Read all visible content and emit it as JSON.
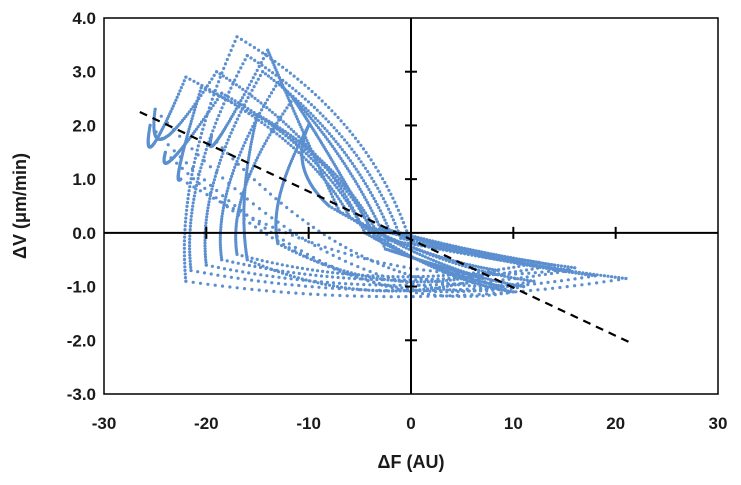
{
  "chart_data": {
    "type": "scatter",
    "title": "",
    "xlabel": "ΔF (AU)",
    "ylabel": "ΔV (μm/min)",
    "xlim": [
      -30,
      30
    ],
    "ylim": [
      -3,
      4
    ],
    "x_ticks": [
      "-30",
      "-20",
      "-10",
      "0",
      "10",
      "20",
      "30"
    ],
    "y_ticks": [
      "-3.0",
      "-2.0",
      "-1.0",
      "0.0",
      "1.0",
      "2.0",
      "3.0",
      "4.0"
    ],
    "grid": false,
    "legend": "none",
    "colors": {
      "points": "#5b8fcf",
      "trend": "#000000",
      "axis": "#000000"
    },
    "trend_line": {
      "x": [
        -26.5,
        21.5
      ],
      "y": [
        2.25,
        -2.05
      ],
      "style": "dashed"
    },
    "loops": [
      {
        "base": [
          0.0,
          -0.2
        ],
        "apex": [
          -17.0,
          3.65
        ],
        "left": [
          -22.0,
          -0.9
        ],
        "right": [
          21.0,
          -0.85
        ]
      },
      {
        "base": [
          -1.0,
          -0.1
        ],
        "apex": [
          -16.0,
          3.3
        ],
        "left": [
          -21.5,
          -0.7
        ],
        "right": [
          18.0,
          -0.8
        ]
      },
      {
        "base": [
          -2.0,
          0.0
        ],
        "apex": [
          -14.5,
          3.0
        ],
        "left": [
          -20.0,
          -0.6
        ],
        "right": [
          15.5,
          -0.7
        ]
      },
      {
        "base": [
          -3.0,
          0.1
        ],
        "apex": [
          -13.0,
          2.8
        ],
        "left": [
          -18.5,
          -0.5
        ],
        "right": [
          14.0,
          -0.6
        ]
      },
      {
        "base": [
          -4.0,
          0.1
        ],
        "apex": [
          -11.5,
          2.5
        ],
        "left": [
          -17.0,
          -0.4
        ],
        "right": [
          12.5,
          -0.55
        ]
      },
      {
        "base": [
          -5.0,
          0.2
        ],
        "apex": [
          -19.0,
          3.0
        ],
        "left": [
          -25.0,
          2.3
        ],
        "right": [
          11.0,
          -1.0
        ]
      },
      {
        "base": [
          -6.0,
          0.3
        ],
        "apex": [
          -22.0,
          2.9
        ],
        "left": [
          -25.5,
          2.0
        ],
        "right": [
          10.0,
          -1.1
        ]
      },
      {
        "base": [
          -4.5,
          0.0
        ],
        "apex": [
          -18.5,
          2.6
        ],
        "left": [
          -24.0,
          1.5
        ],
        "right": [
          9.0,
          -1.0
        ]
      },
      {
        "base": [
          -7.0,
          0.4
        ],
        "apex": [
          -14.0,
          3.4
        ],
        "left": [
          -19.5,
          1.8
        ],
        "right": [
          12.0,
          -0.9
        ]
      },
      {
        "base": [
          -8.0,
          0.5
        ],
        "apex": [
          -10.0,
          2.0
        ],
        "left": [
          -13.0,
          -0.2
        ],
        "right": [
          8.5,
          -0.7
        ]
      },
      {
        "base": [
          -3.5,
          -0.1
        ],
        "apex": [
          -20.5,
          2.7
        ],
        "left": [
          -22.5,
          1.0
        ],
        "right": [
          16.0,
          -0.65
        ]
      },
      {
        "base": [
          -2.5,
          -0.3
        ],
        "apex": [
          -15.0,
          2.2
        ],
        "left": [
          -16.0,
          -0.5
        ],
        "right": [
          7.0,
          -0.85
        ]
      }
    ]
  }
}
